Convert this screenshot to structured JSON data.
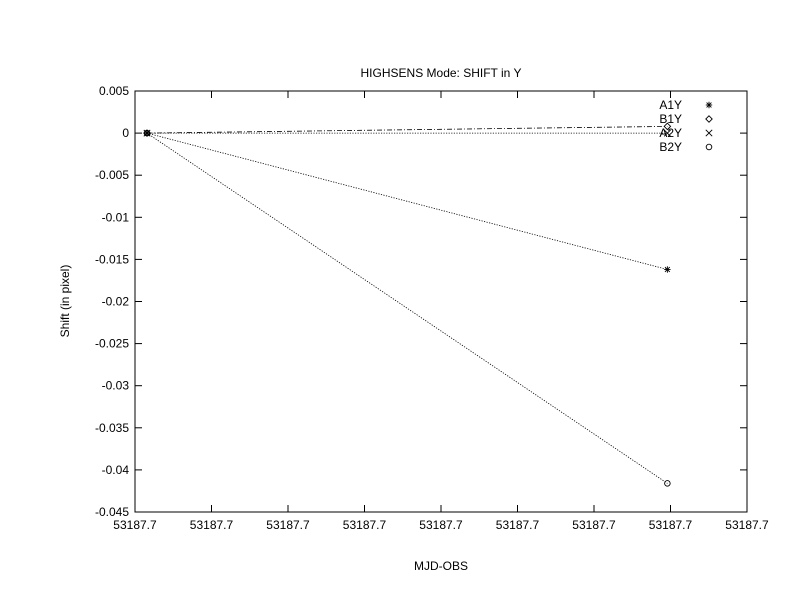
{
  "chart_data": {
    "type": "line",
    "title": "HIGHSENS Mode: SHIFT in Y",
    "xlabel": "MJD-OBS",
    "ylabel": "Shift (in pixel)",
    "x_tick_labels": [
      "53187.7",
      "53187.7",
      "53187.7",
      "53187.7",
      "53187.7",
      "53187.7",
      "53187.7",
      "53187.7",
      "53187.7"
    ],
    "y_tick_labels": [
      "0.005",
      "0",
      "-0.005",
      "-0.01",
      "-0.015",
      "-0.02",
      "-0.025",
      "-0.03",
      "-0.035",
      "-0.04",
      "-0.045"
    ],
    "ylim": [
      -0.045,
      0.005
    ],
    "grid": false,
    "legend_position": "top-right",
    "series": [
      {
        "name": "A1Y",
        "marker": "asterisk",
        "x_fraction": [
          0.0,
          0.885
        ],
        "values": [
          0.0,
          -0.0162
        ]
      },
      {
        "name": "B1Y",
        "marker": "diamond",
        "x_fraction": [
          0.0,
          0.885
        ],
        "values": [
          0.0,
          0.0008
        ]
      },
      {
        "name": "A2Y",
        "marker": "cross",
        "x_fraction": [
          0.0,
          0.885
        ],
        "values": [
          0.0,
          0.0
        ]
      },
      {
        "name": "B2Y",
        "marker": "circle",
        "x_fraction": [
          0.0,
          0.885
        ],
        "values": [
          0.0,
          -0.0416
        ]
      }
    ]
  }
}
